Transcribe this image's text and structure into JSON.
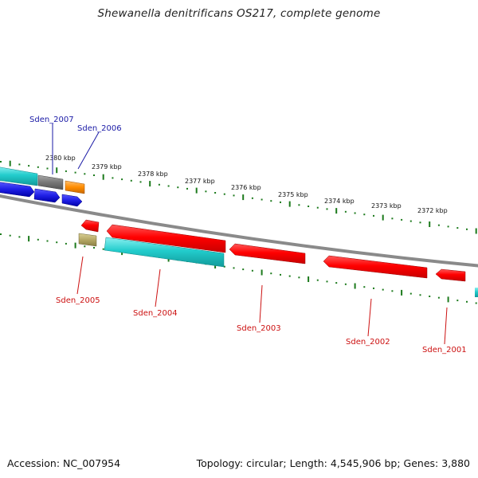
{
  "title": "Shewanella denitrificans OS217, complete genome",
  "footer": {
    "accession": "Accession: NC_007954",
    "topology": "Topology: circular; Length: 4,545,906 bp; Genes: 3,880"
  },
  "colors": {
    "backbone": "#8a8a8a",
    "ticks": "#1c7a1c",
    "forward_label": "#1a1aa6",
    "reverse_label": "#cc1111",
    "red": "#ff0000",
    "cyan": "#22cccc",
    "blue": "#1f1fe6",
    "gray": "#777777",
    "orange": "#ff8c00",
    "khaki": "#b5a865"
  },
  "scale": {
    "unit": "kbp",
    "labels": [
      "2380 kbp",
      "2379 kbp",
      "2378 kbp",
      "2377 kbp",
      "2376 kbp",
      "2375 kbp",
      "2374 kbp",
      "2373 kbp",
      "2372 kbp"
    ]
  },
  "genes": [
    {
      "label": "Sden_2007",
      "strand": "forward",
      "color": "gray"
    },
    {
      "label": "Sden_2006",
      "strand": "forward",
      "color": "orange"
    },
    {
      "label": "Sden_2005",
      "strand": "reverse",
      "color": "khaki"
    },
    {
      "label": "Sden_2004",
      "strand": "reverse",
      "color": "cyan"
    },
    {
      "label": "Sden_2003",
      "strand": "reverse",
      "color": "red"
    },
    {
      "label": "Sden_2002",
      "strand": "reverse",
      "color": "red"
    },
    {
      "label": "Sden_2001",
      "strand": "reverse",
      "color": "red"
    }
  ]
}
